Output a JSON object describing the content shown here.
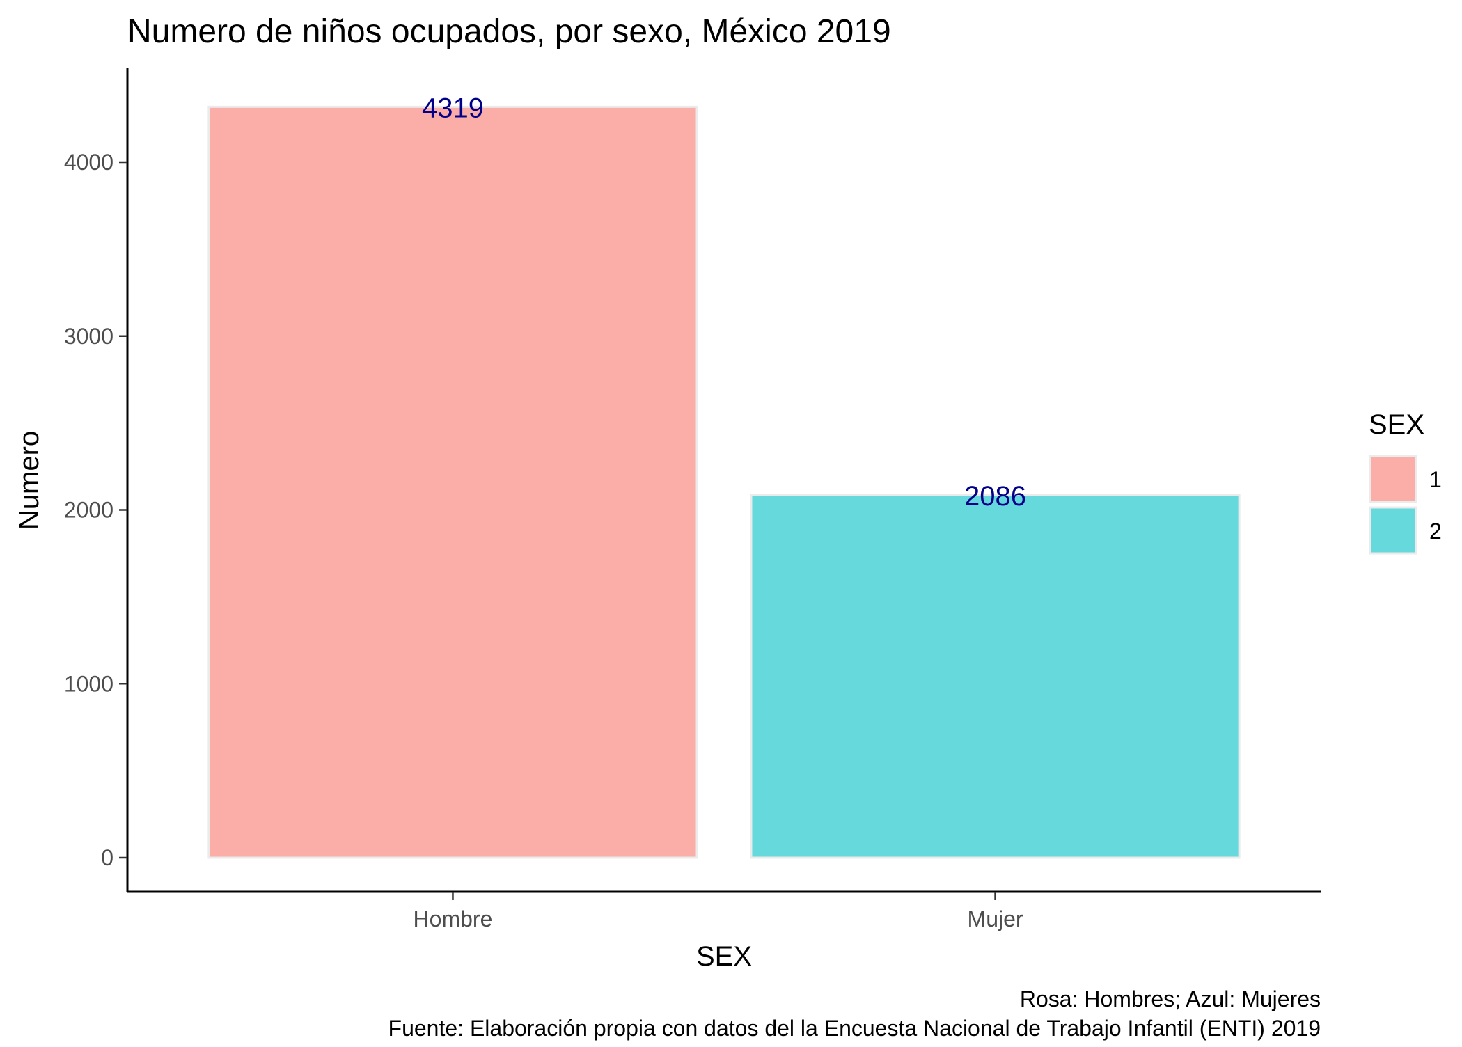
{
  "chart_data": {
    "type": "bar",
    "title": "Numero de niños ocupados, por sexo, México 2019",
    "xlabel": "SEX",
    "ylabel": "Numero",
    "categories": [
      "Hombre",
      "Mujer"
    ],
    "values": [
      4319,
      2086
    ],
    "data_labels": [
      "4319",
      "2086"
    ],
    "ylim": [
      0,
      4500
    ],
    "yticks": [
      0,
      1000,
      2000,
      3000,
      4000
    ],
    "ytick_labels": [
      "0",
      "1000",
      "2000",
      "3000",
      "4000"
    ],
    "bar_colors": [
      "#F8766D",
      "#00BFC4"
    ],
    "bar_fill_opacity": 0.6,
    "bar_outline_color": "#EBEBEB",
    "label_color": "#00008B",
    "grid": false,
    "legend": {
      "title": "SEX",
      "placement": "right",
      "entries": [
        {
          "label": "1",
          "color": "#F8766D"
        },
        {
          "label": "2",
          "color": "#00BFC4"
        }
      ]
    },
    "caption_lines": [
      "Rosa: Hombres; Azul: Mujeres",
      "Fuente: Elaboración propia con datos del la Encuesta Nacional de Trabajo Infantil (ENTI) 2019"
    ]
  }
}
